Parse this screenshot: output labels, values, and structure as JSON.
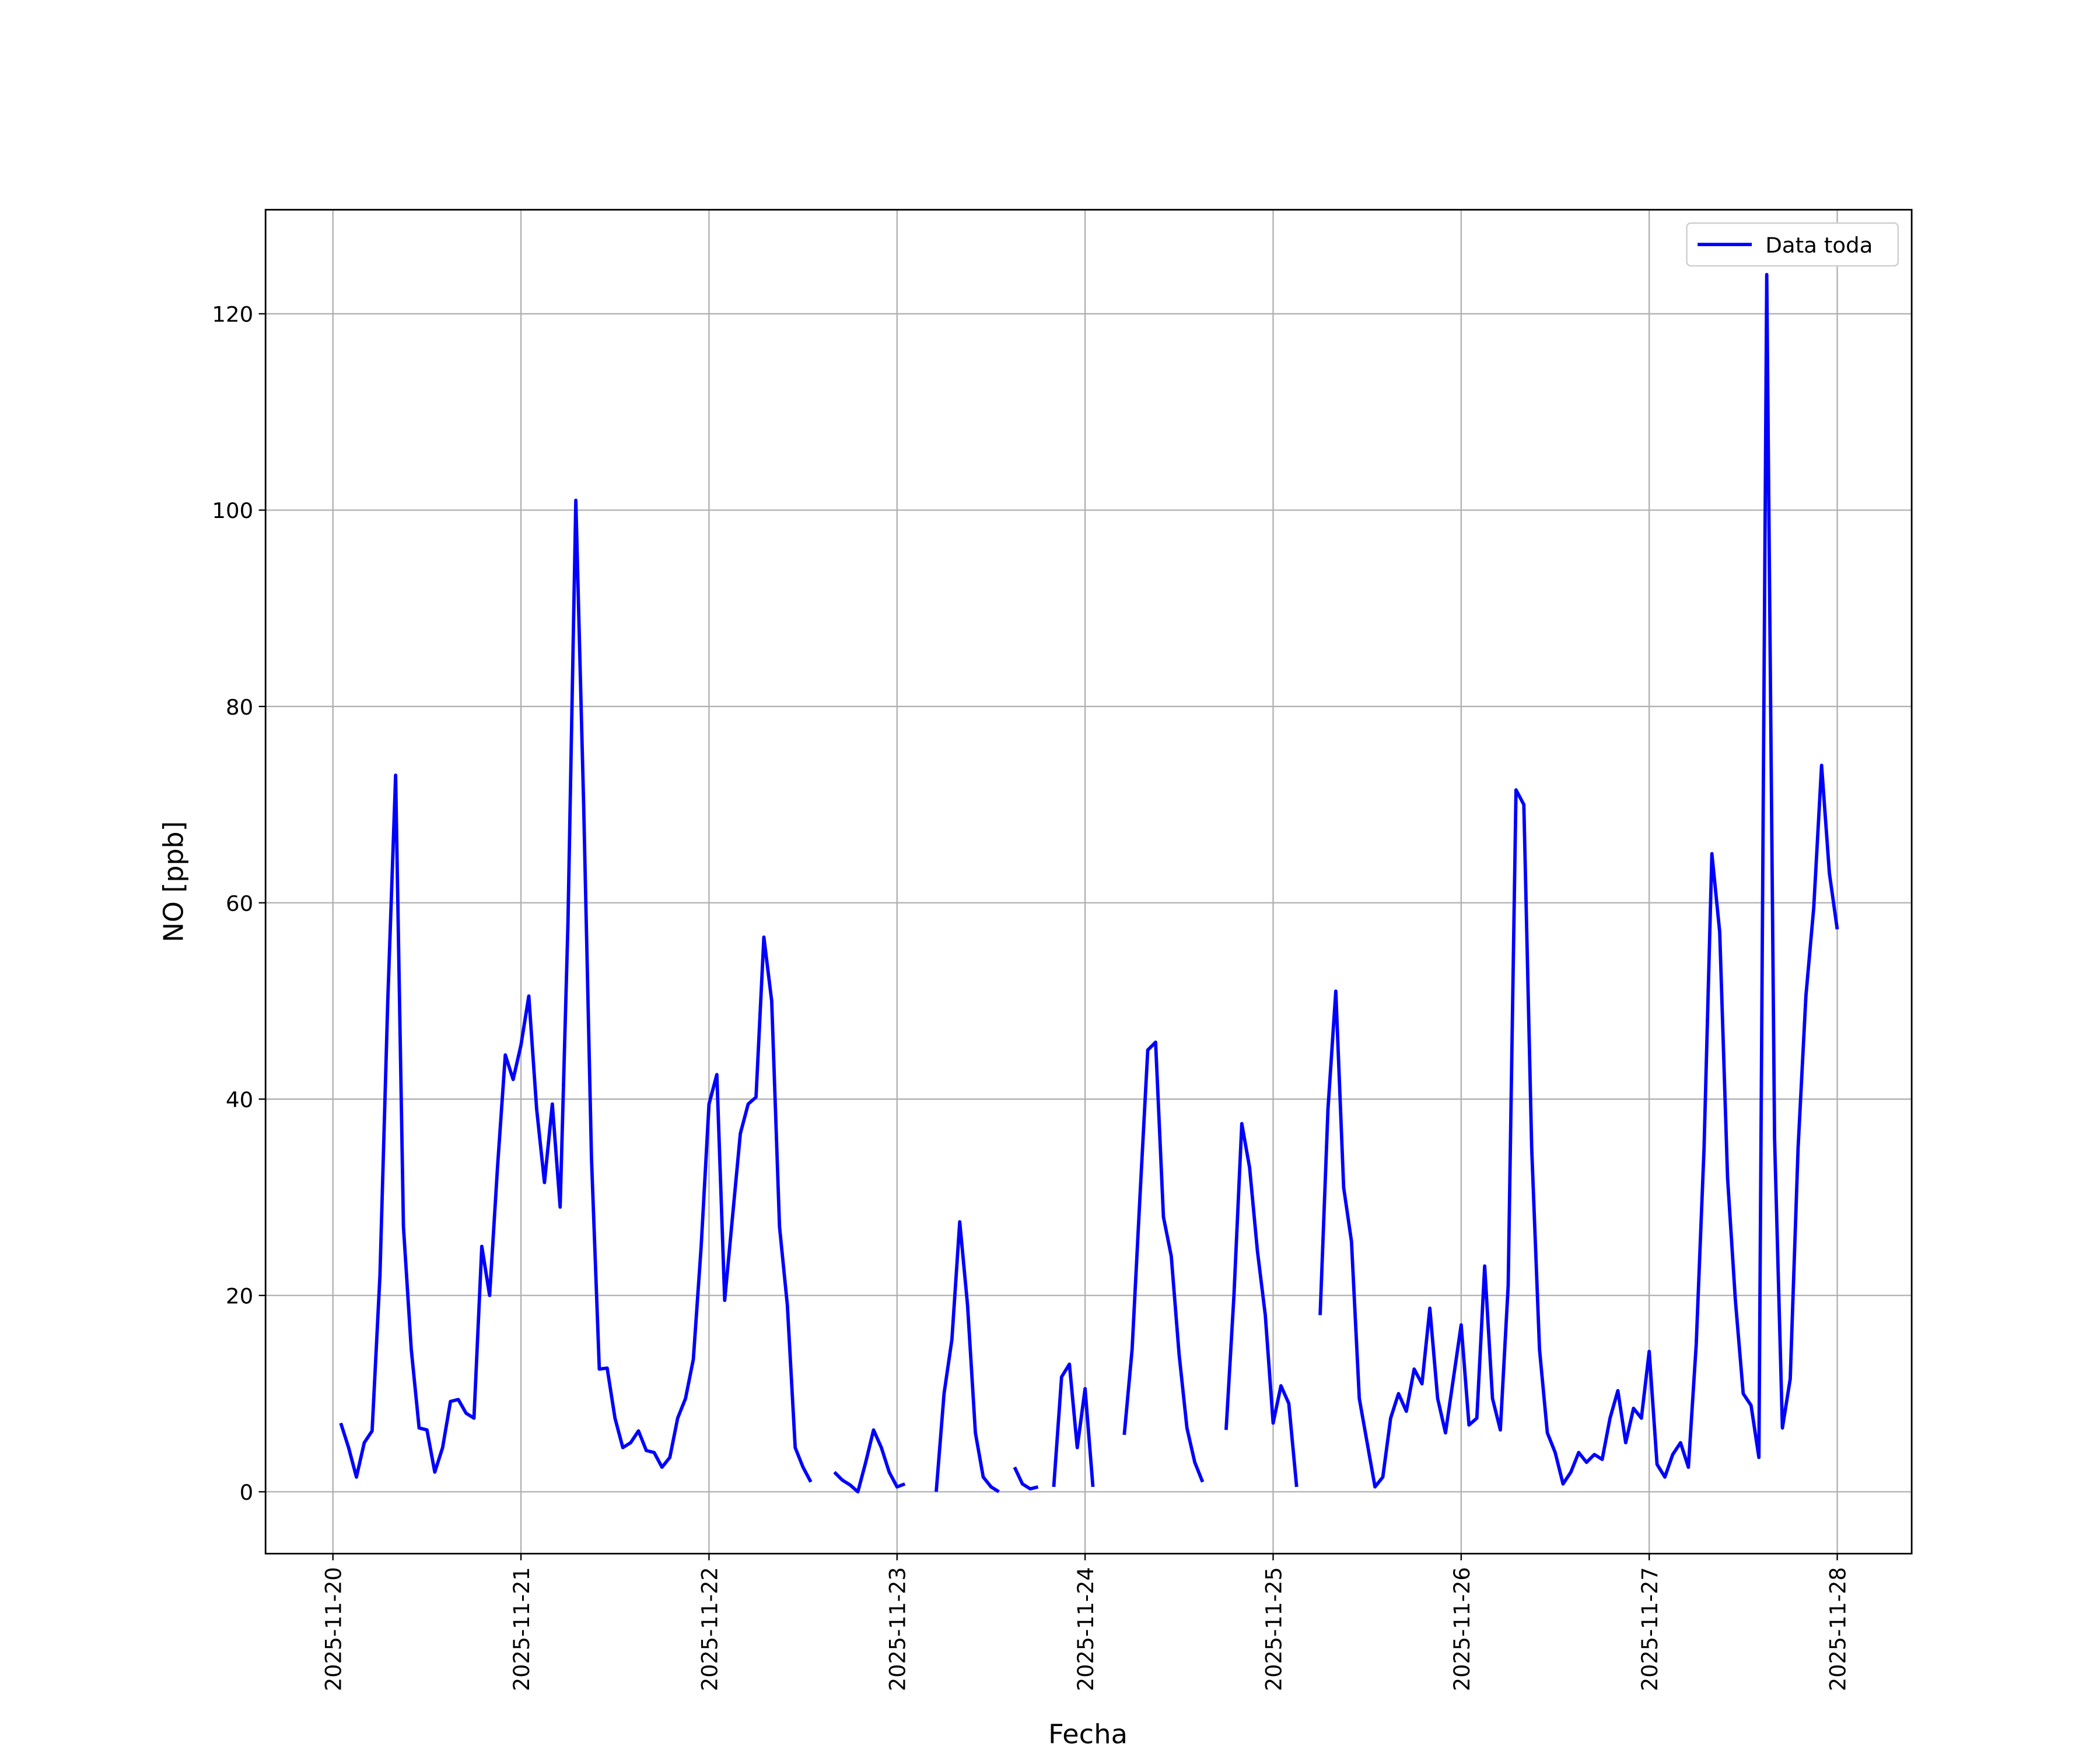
{
  "chart_data": {
    "type": "line",
    "xlabel": "Fecha",
    "ylabel": "NO [ppb]",
    "x": [
      1,
      2,
      3,
      4,
      5,
      6,
      7,
      8,
      9,
      10,
      11,
      12,
      13,
      14,
      15,
      16,
      17,
      18,
      19,
      20,
      21,
      22,
      23,
      24,
      25,
      26,
      27,
      28,
      29,
      30,
      31,
      32,
      33,
      34,
      35,
      36,
      37,
      38,
      39,
      40,
      41,
      42,
      43,
      44,
      45,
      46,
      47,
      48,
      49,
      50,
      51,
      52,
      53,
      54,
      55,
      56,
      57,
      58,
      59,
      60,
      61,
      62,
      63,
      64,
      65,
      66,
      67,
      68,
      69,
      70,
      71,
      72,
      73,
      74,
      75,
      76,
      77,
      78,
      79,
      80,
      81,
      82,
      83,
      84,
      85,
      86,
      87,
      88,
      89,
      90,
      91,
      92,
      93,
      94,
      95,
      96,
      97,
      98,
      99,
      100,
      101,
      102,
      103,
      104,
      105,
      106,
      107,
      108,
      109,
      110,
      111,
      112,
      113,
      114,
      115,
      116,
      117,
      118,
      119,
      120,
      121,
      122,
      123,
      124,
      125,
      126,
      127,
      128,
      129,
      130,
      131,
      132,
      133,
      134,
      135,
      136,
      137,
      138,
      139,
      140,
      141,
      142,
      143,
      144,
      145,
      146,
      147,
      148,
      149,
      150,
      151,
      152,
      153,
      154,
      155,
      156,
      157,
      158,
      159,
      160,
      161,
      162,
      163,
      164,
      165,
      166,
      167,
      168,
      169,
      170,
      171,
      172,
      173,
      174,
      175,
      176,
      177,
      178,
      179,
      180,
      181,
      182,
      183,
      184,
      185,
      186,
      187,
      188,
      189,
      190,
      191,
      192
    ],
    "series": [
      {
        "name": "Data toda",
        "color": "#0000ff",
        "values": [
          7,
          4.5,
          1.5,
          5,
          6.2,
          22,
          50,
          73,
          27,
          14.5,
          6.5,
          6.3,
          2,
          4.5,
          9.2,
          9.4,
          8,
          7.5,
          25,
          20,
          33,
          44.5,
          42,
          45.5,
          50.5,
          39,
          31.5,
          39.5,
          29,
          58,
          101,
          70,
          34,
          12.5,
          12.6,
          7.5,
          4.5,
          5,
          6.2,
          4.2,
          4,
          2.5,
          3.5,
          7.5,
          9.5,
          13.5,
          25,
          39.5,
          42.5,
          19.5,
          28,
          36.5,
          39.5,
          40.2,
          56.5,
          50,
          27,
          19,
          4.5,
          2.5,
          1,
          null,
          null,
          2,
          1.2,
          0.7,
          0,
          3,
          6.3,
          4.5,
          2,
          0.5,
          0.8,
          null,
          null,
          null,
          0,
          10,
          15.5,
          27.5,
          19,
          6,
          1.5,
          0.5,
          0,
          null,
          2.5,
          0.8,
          0.3,
          0.5,
          null,
          0.5,
          11.7,
          13,
          4.5,
          10.5,
          0.5,
          null,
          null,
          null,
          5.8,
          14.5,
          30,
          45,
          45.8,
          28,
          24,
          14,
          6.5,
          3,
          1,
          null,
          null,
          6.3,
          20,
          37.5,
          33,
          24.5,
          18,
          7,
          10.8,
          9,
          0.5,
          null,
          null,
          18,
          39,
          51,
          31,
          25.5,
          9.5,
          5,
          0.5,
          1.5,
          7.5,
          10,
          8.2,
          12.5,
          11,
          18.7,
          9.5,
          6,
          11.5,
          17,
          6.8,
          7.5,
          23,
          9.5,
          6.3,
          21,
          71.5,
          70,
          35,
          14.5,
          6,
          4,
          0.8,
          2,
          4,
          3,
          3.8,
          3.3,
          7.5,
          10.3,
          5,
          8.5,
          7.5,
          14.3,
          2.8,
          1.5,
          3.8,
          5,
          2.5,
          15,
          35,
          65,
          57,
          32,
          19.5,
          10,
          8.8,
          3.5,
          124,
          36,
          6.5,
          11.5,
          35,
          50.5,
          59.5,
          74,
          63,
          57.3
        ]
      }
    ],
    "xlim": [
      -8.6,
      201.5
    ],
    "xticks": [
      {
        "value": 0,
        "label": "2025-11-20"
      },
      {
        "value": 24,
        "label": "2025-11-21"
      },
      {
        "value": 48,
        "label": "2025-11-22"
      },
      {
        "value": 72,
        "label": "2025-11-23"
      },
      {
        "value": 96,
        "label": "2025-11-24"
      },
      {
        "value": 120,
        "label": "2025-11-25"
      },
      {
        "value": 144,
        "label": "2025-11-26"
      },
      {
        "value": 168,
        "label": "2025-11-27"
      },
      {
        "value": 192,
        "label": "2025-11-28"
      }
    ],
    "ylim": [
      -6.3,
      130.6
    ],
    "yticks": [
      0,
      20,
      40,
      60,
      80,
      100,
      120
    ],
    "grid": true,
    "legend": "upper right"
  }
}
